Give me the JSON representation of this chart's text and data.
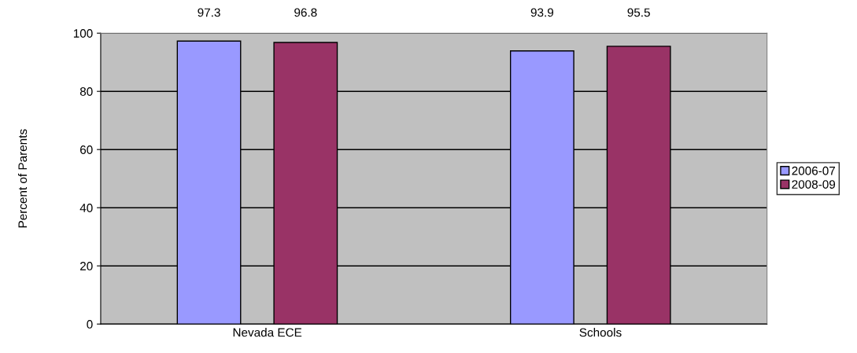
{
  "chart_data": {
    "type": "bar",
    "ylabel": "Percent of Parents",
    "categories": [
      "Nevada ECE",
      "Schools"
    ],
    "series": [
      {
        "name": "2006-07",
        "color": "#9999ff",
        "values": [
          97.3,
          93.9
        ]
      },
      {
        "name": "2008-09",
        "color": "#993366",
        "values": [
          96.8,
          95.5
        ]
      }
    ],
    "ylim": [
      0,
      100
    ],
    "yticks": [
      0,
      20,
      40,
      60,
      80,
      100
    ],
    "grid": "y",
    "legend": "right",
    "data_labels": true
  }
}
